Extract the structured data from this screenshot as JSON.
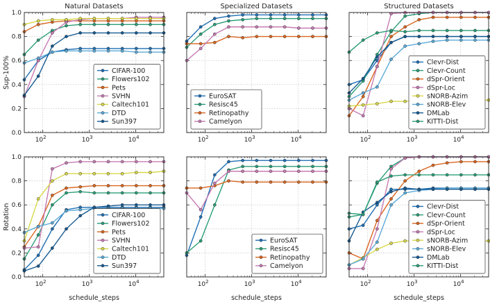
{
  "chart_data": [
    {
      "type": "line",
      "title": "Natural Datasets",
      "ylabel": "Sup-100%",
      "xlabel": "",
      "xscale": "log",
      "xlim": [
        40,
        40000
      ],
      "ylim": [
        0,
        1
      ],
      "yticks": [
        "0.0",
        "0.2",
        "0.4",
        "0.6",
        "0.8",
        "1.0"
      ],
      "xticks": [
        {
          "exp": "2",
          "value": 100
        },
        {
          "exp": "3",
          "value": 1000
        },
        {
          "exp": "4",
          "value": 10000
        }
      ],
      "x": [
        40,
        80,
        160,
        320,
        640,
        1280,
        2560,
        5120,
        10240,
        20480,
        40000
      ],
      "legend_position": "bottom-right",
      "series": [
        {
          "name": "CIFAR-100",
          "color": "#1f6fb4",
          "values": [
            0.44,
            0.6,
            0.67,
            0.69,
            0.7,
            0.7,
            0.7,
            0.7,
            0.7,
            0.7,
            0.7
          ]
        },
        {
          "name": "Flowers102",
          "color": "#2a9d78",
          "values": [
            0.65,
            0.77,
            0.85,
            0.89,
            0.9,
            0.9,
            0.9,
            0.9,
            0.9,
            0.9,
            0.9
          ]
        },
        {
          "name": "Pets",
          "color": "#d9661f",
          "values": [
            0.84,
            0.9,
            0.92,
            0.93,
            0.93,
            0.93,
            0.93,
            0.93,
            0.93,
            0.93,
            0.93
          ]
        },
        {
          "name": "SVHN",
          "color": "#c77bb3",
          "values": [
            0.3,
            0.6,
            0.83,
            0.92,
            0.94,
            0.95,
            0.95,
            0.95,
            0.96,
            0.96,
            0.96
          ]
        },
        {
          "name": "Caltech101",
          "color": "#d8d84a",
          "values": [
            0.9,
            0.93,
            0.94,
            0.94,
            0.95,
            0.95,
            0.95,
            0.95,
            0.95,
            0.95,
            0.95
          ]
        },
        {
          "name": "DTD",
          "color": "#5aaad8",
          "values": [
            0.58,
            0.62,
            0.67,
            0.68,
            0.68,
            0.68,
            0.68,
            0.68,
            0.67,
            0.67,
            0.67
          ]
        },
        {
          "name": "Sun397",
          "color": "#155a92",
          "values": [
            0.31,
            0.47,
            0.72,
            0.8,
            0.83,
            0.83,
            0.83,
            0.83,
            0.83,
            0.83,
            0.83
          ]
        }
      ]
    },
    {
      "type": "line",
      "title": "Specialized Datasets",
      "ylabel": "",
      "xlabel": "",
      "xscale": "log",
      "xlim": [
        40,
        40000
      ],
      "ylim": [
        0,
        1
      ],
      "yticks": [],
      "xticks": [
        {
          "exp": "2",
          "value": 100
        },
        {
          "exp": "3",
          "value": 1000
        },
        {
          "exp": "4",
          "value": 10000
        }
      ],
      "x": [
        40,
        80,
        160,
        320,
        640,
        1280,
        2560,
        5120,
        10240,
        20480,
        40000
      ],
      "legend_position": "bottom-left",
      "series": [
        {
          "name": "EuroSAT",
          "color": "#1f6fb4",
          "values": [
            0.76,
            0.88,
            0.95,
            0.97,
            0.98,
            0.98,
            0.98,
            0.98,
            0.98,
            0.98,
            0.98
          ]
        },
        {
          "name": "Resisc45",
          "color": "#2a9d78",
          "values": [
            0.71,
            0.82,
            0.9,
            0.93,
            0.94,
            0.95,
            0.95,
            0.95,
            0.95,
            0.95,
            0.95
          ]
        },
        {
          "name": "Retinopathy",
          "color": "#d9661f",
          "values": [
            0.74,
            0.74,
            0.75,
            0.8,
            0.79,
            0.8,
            0.8,
            0.8,
            0.8,
            0.8,
            0.8
          ]
        },
        {
          "name": "Camelyon",
          "color": "#c77bb3",
          "values": [
            0.6,
            0.7,
            0.82,
            0.88,
            0.88,
            0.88,
            0.88,
            0.88,
            0.87,
            0.87,
            0.87
          ]
        }
      ]
    },
    {
      "type": "line",
      "title": "Structured Datasets",
      "ylabel": "",
      "xlabel": "",
      "xscale": "log",
      "xlim": [
        40,
        40000
      ],
      "ylim": [
        0,
        1
      ],
      "yticks": [],
      "xticks": [
        {
          "exp": "2",
          "value": 100
        },
        {
          "exp": "3",
          "value": 1000
        },
        {
          "exp": "4",
          "value": 10000
        }
      ],
      "x": [
        40,
        80,
        160,
        320,
        640,
        1280,
        2560,
        5120,
        10240,
        20480,
        40000
      ],
      "legend_position": "bottom-right",
      "series": [
        {
          "name": "Clevr-Dist",
          "color": "#1f6fb4",
          "values": [
            0.4,
            0.44,
            0.6,
            0.75,
            0.8,
            0.8,
            0.8,
            0.8,
            0.8,
            0.8,
            0.8
          ]
        },
        {
          "name": "Clevr-Count",
          "color": "#2a9d78",
          "values": [
            0.3,
            0.43,
            0.65,
            0.84,
            0.97,
            0.99,
            1.0,
            1.0,
            1.0,
            1.0,
            1.0
          ]
        },
        {
          "name": "dSpr-Orient",
          "color": "#d9661f",
          "values": [
            0.14,
            0.3,
            0.55,
            0.8,
            0.88,
            0.94,
            0.96,
            0.96,
            0.96,
            0.96,
            0.96
          ]
        },
        {
          "name": "dSpr-Loc",
          "color": "#c77bb3",
          "values": [
            0.2,
            0.14,
            0.55,
            0.99,
            1.0,
            1.0,
            1.0,
            1.0,
            1.0,
            1.0,
            1.0
          ]
        },
        {
          "name": "sNORB-Azim",
          "color": "#d8d84a",
          "values": [
            0.22,
            0.23,
            0.24,
            0.26,
            0.26,
            0.27,
            0.27,
            0.27,
            0.27,
            0.27,
            0.27
          ]
        },
        {
          "name": "sNORB-Elev",
          "color": "#5aaad8",
          "values": [
            0.27,
            0.33,
            0.38,
            0.61,
            0.72,
            0.74,
            0.76,
            0.77,
            0.77,
            0.77,
            0.77
          ]
        },
        {
          "name": "DMLab",
          "color": "#155a92",
          "values": [
            0.33,
            0.45,
            0.63,
            0.75,
            0.8,
            0.8,
            0.8,
            0.8,
            0.8,
            0.8,
            0.8
          ]
        },
        {
          "name": "KITTI-Dist",
          "color": "#2a9d78",
          "values": [
            0.67,
            0.77,
            0.83,
            0.85,
            0.84,
            0.85,
            0.85,
            0.85,
            0.85,
            0.85,
            0.85
          ]
        }
      ]
    },
    {
      "type": "line",
      "title": "",
      "ylabel": "Rotation",
      "xlabel": "schedule_steps",
      "xscale": "log",
      "xlim": [
        40,
        40000
      ],
      "ylim": [
        0,
        1
      ],
      "yticks": [
        "0.0",
        "0.2",
        "0.4",
        "0.6",
        "0.8",
        "1.0"
      ],
      "xticks": [
        {
          "exp": "2",
          "value": 100
        },
        {
          "exp": "3",
          "value": 1000
        },
        {
          "exp": "4",
          "value": 10000
        }
      ],
      "x": [
        40,
        80,
        160,
        320,
        640,
        1280,
        2560,
        5120,
        10240,
        20480,
        40000
      ],
      "legend_position": "bottom-right",
      "series": [
        {
          "name": "CIFAR-100",
          "color": "#1f6fb4",
          "values": [
            0.06,
            0.18,
            0.4,
            0.56,
            0.58,
            0.58,
            0.58,
            0.58,
            0.58,
            0.58,
            0.58
          ]
        },
        {
          "name": "Flowers102",
          "color": "#2a9d78",
          "values": [
            0.15,
            0.35,
            0.6,
            0.7,
            0.71,
            0.7,
            0.7,
            0.7,
            0.7,
            0.7,
            0.7
          ]
        },
        {
          "name": "Pets",
          "color": "#d9661f",
          "values": [
            0.25,
            0.42,
            0.68,
            0.74,
            0.75,
            0.76,
            0.76,
            0.76,
            0.76,
            0.76,
            0.76
          ]
        },
        {
          "name": "SVHN",
          "color": "#c77bb3",
          "values": [
            0.24,
            0.25,
            0.9,
            0.95,
            0.96,
            0.96,
            0.96,
            0.96,
            0.96,
            0.96,
            0.96
          ]
        },
        {
          "name": "Caltech101",
          "color": "#d8d84a",
          "values": [
            0.3,
            0.65,
            0.8,
            0.86,
            0.86,
            0.86,
            0.86,
            0.86,
            0.87,
            0.87,
            0.88
          ]
        },
        {
          "name": "DTD",
          "color": "#5aaad8",
          "values": [
            0.37,
            0.42,
            0.45,
            0.55,
            0.56,
            0.57,
            0.57,
            0.57,
            0.57,
            0.57,
            0.57
          ]
        },
        {
          "name": "Sun397",
          "color": "#155a92",
          "values": [
            0.05,
            0.09,
            0.24,
            0.4,
            0.51,
            0.58,
            0.59,
            0.6,
            0.6,
            0.6,
            0.6
          ]
        }
      ]
    },
    {
      "type": "line",
      "title": "",
      "ylabel": "",
      "xlabel": "schedule_steps",
      "xscale": "log",
      "xlim": [
        40,
        40000
      ],
      "ylim": [
        0,
        1
      ],
      "yticks": [],
      "xticks": [
        {
          "exp": "2",
          "value": 100
        },
        {
          "exp": "3",
          "value": 1000
        },
        {
          "exp": "4",
          "value": 10000
        }
      ],
      "x": [
        40,
        80,
        160,
        320,
        640,
        1280,
        2560,
        5120,
        10240,
        20480,
        40000
      ],
      "legend_position": "bottom-right",
      "series": [
        {
          "name": "EuroSAT",
          "color": "#1f6fb4",
          "values": [
            0.18,
            0.5,
            0.85,
            0.96,
            0.97,
            0.97,
            0.97,
            0.97,
            0.97,
            0.97,
            0.97
          ]
        },
        {
          "name": "Resisc45",
          "color": "#2a9d78",
          "values": [
            0.2,
            0.3,
            0.6,
            0.89,
            0.92,
            0.92,
            0.92,
            0.92,
            0.92,
            0.92,
            0.92
          ]
        },
        {
          "name": "Retinopathy",
          "color": "#d9661f",
          "values": [
            0.74,
            0.74,
            0.76,
            0.8,
            0.79,
            0.79,
            0.79,
            0.79,
            0.79,
            0.79,
            0.79
          ]
        },
        {
          "name": "Camelyon",
          "color": "#c77bb3",
          "values": [
            0.7,
            0.56,
            0.78,
            0.88,
            0.88,
            0.88,
            0.88,
            0.88,
            0.88,
            0.88,
            0.88
          ]
        }
      ]
    },
    {
      "type": "line",
      "title": "",
      "ylabel": "",
      "xlabel": "schedule_steps",
      "xscale": "log",
      "xlim": [
        40,
        40000
      ],
      "ylim": [
        0,
        1
      ],
      "yticks": [],
      "xticks": [
        {
          "exp": "2",
          "value": 100
        },
        {
          "exp": "3",
          "value": 1000
        },
        {
          "exp": "4",
          "value": 10000
        }
      ],
      "x": [
        40,
        80,
        160,
        320,
        640,
        1280,
        2560,
        5120,
        10240,
        20480,
        40000
      ],
      "legend_position": "bottom-right",
      "series": [
        {
          "name": "Clevr-Dist",
          "color": "#1f6fb4",
          "values": [
            0.4,
            0.43,
            0.6,
            0.73,
            0.73,
            0.73,
            0.74,
            0.74,
            0.74,
            0.74,
            0.74
          ]
        },
        {
          "name": "Clevr-Count",
          "color": "#2a9d78",
          "values": [
            0.5,
            0.52,
            0.78,
            0.92,
            0.99,
            1.0,
            1.0,
            1.0,
            1.0,
            1.0,
            1.0
          ]
        },
        {
          "name": "dSpr-Orient",
          "color": "#d9661f",
          "values": [
            0.2,
            0.15,
            0.47,
            0.65,
            0.8,
            0.88,
            0.93,
            0.95,
            0.96,
            0.96,
            0.96
          ]
        },
        {
          "name": "dSpr-Loc",
          "color": "#c77bb3",
          "values": [
            0.07,
            0.07,
            0.4,
            0.9,
            0.99,
            1.0,
            1.0,
            1.0,
            1.0,
            1.0,
            1.0
          ]
        },
        {
          "name": "sNORB-Azim",
          "color": "#d8d84a",
          "values": [
            0.1,
            0.16,
            0.23,
            0.28,
            0.3,
            0.3,
            0.3,
            0.3,
            0.3,
            0.3,
            0.3
          ]
        },
        {
          "name": "sNORB-Elev",
          "color": "#5aaad8",
          "values": [
            0.1,
            0.15,
            0.29,
            0.6,
            0.7,
            0.72,
            0.73,
            0.74,
            0.74,
            0.74,
            0.74
          ]
        },
        {
          "name": "DMLab",
          "color": "#155a92",
          "values": [
            0.3,
            0.54,
            0.62,
            0.71,
            0.74,
            0.73,
            0.73,
            0.73,
            0.73,
            0.73,
            0.73
          ]
        },
        {
          "name": "KITTI-Dist",
          "color": "#2a9d78",
          "values": [
            0.53,
            0.52,
            0.79,
            0.84,
            0.85,
            0.85,
            0.85,
            0.85,
            0.85,
            0.85,
            0.85
          ]
        }
      ]
    }
  ]
}
